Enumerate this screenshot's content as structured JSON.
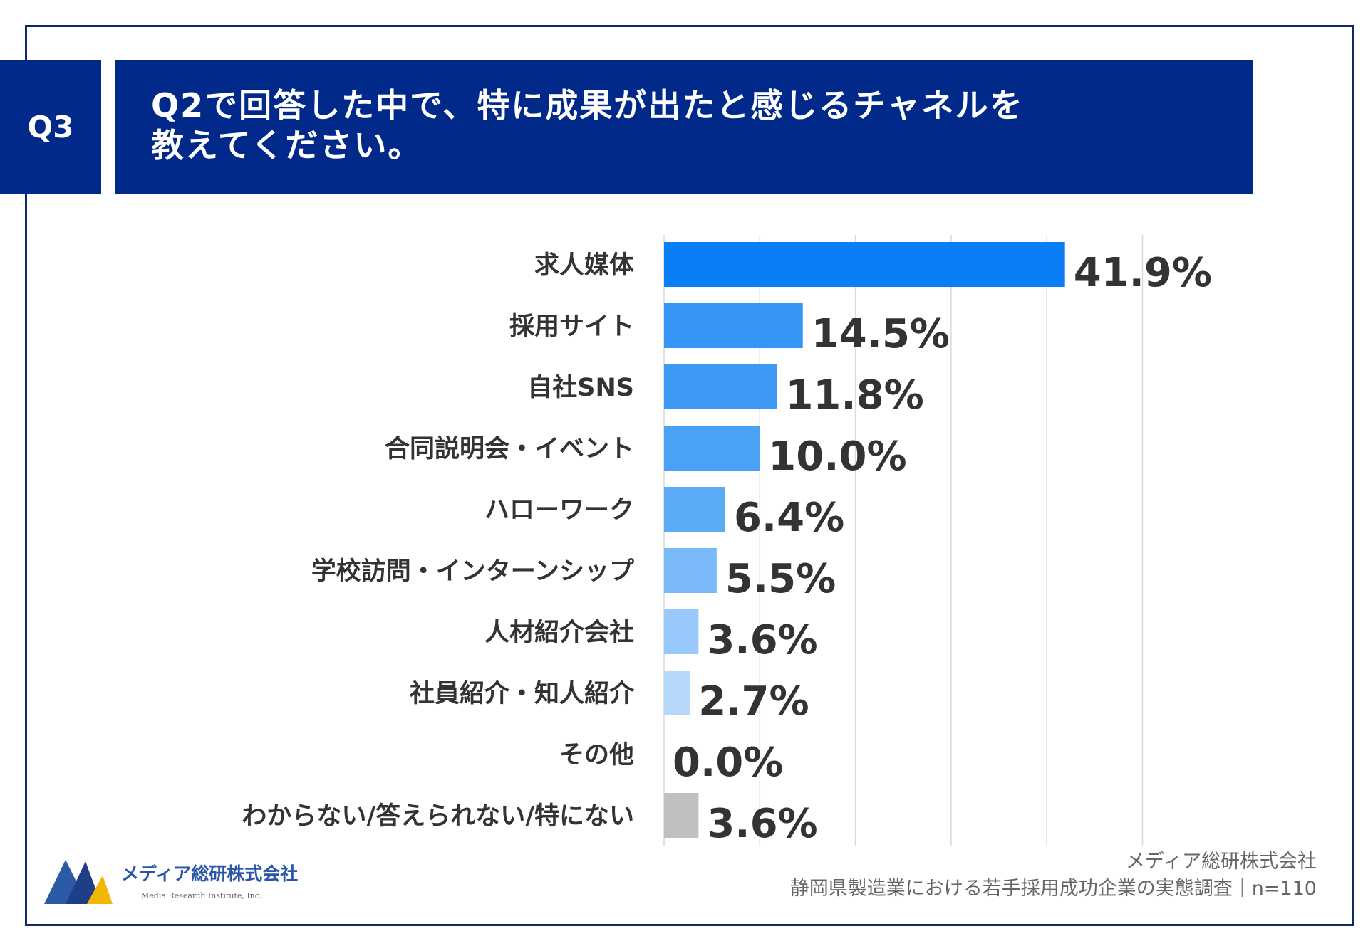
{
  "header": {
    "badge": "Q3",
    "title": "Q2で回答した中で、特に成果が出たと感じるチャネルを\n教えてください。"
  },
  "chart_data": {
    "type": "bar",
    "orientation": "horizontal",
    "categories": [
      "求人媒体",
      "採用サイト",
      "自社SNS",
      "合同説明会・イベント",
      "ハローワーク",
      "学校訪問・インターンシップ",
      "人材紹介会社",
      "社員紹介・知人紹介",
      "その他",
      "わからない/答えられない/特にない"
    ],
    "values": [
      41.9,
      14.5,
      11.8,
      10.0,
      6.4,
      5.5,
      3.6,
      2.7,
      0.0,
      3.6
    ],
    "value_labels": [
      "41.9%",
      "14.5%",
      "11.8%",
      "10.0%",
      "6.4%",
      "5.5%",
      "3.6%",
      "2.7%",
      "0.0%",
      "3.6%"
    ],
    "colors": [
      "#0a7ff5",
      "#3595f5",
      "#3c9af5",
      "#4aa1f5",
      "#5aaaf6",
      "#7ab9f8",
      "#98c9fa",
      "#b6d9fb",
      "#cce4fc",
      "#c0c0c0"
    ],
    "xlim": [
      0,
      50
    ],
    "grid": true,
    "legend": "none"
  },
  "source": {
    "company": "メディア総研株式会社",
    "survey": "静岡県製造業における若手採用成功企業の実態調査｜n=110"
  },
  "logo": {
    "name": "メディア総研株式会社",
    "sub": "Media Research Institute, Inc."
  }
}
